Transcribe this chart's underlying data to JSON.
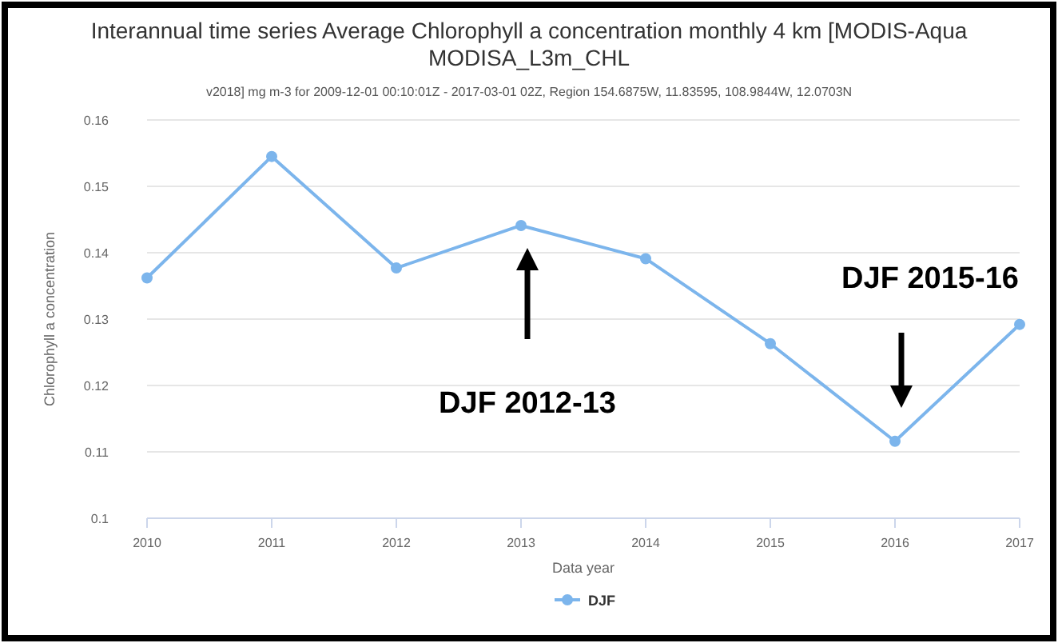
{
  "chart_data": {
    "type": "line",
    "title": "Interannual time series Average Chlorophyll a concentration monthly 4 km [MODIS-Aqua MODISA_L3m_CHL",
    "subtitle": "v2018] mg m-3 for 2009-12-01 00:10:01Z - 2017-03-01 02Z, Region 154.6875W, 11.83595, 108.9844W, 12.0703N",
    "xlabel": "Data year",
    "ylabel": "Chlorophyll a concentration",
    "x": [
      2010,
      2011,
      2012,
      2013,
      2014,
      2015,
      2016,
      2017
    ],
    "series": [
      {
        "name": "DJF",
        "color": "#7cb5ec",
        "values": [
          0.1362,
          0.1545,
          0.1377,
          0.1441,
          0.1391,
          0.1263,
          0.1116,
          0.1292
        ]
      }
    ],
    "xlim": [
      2010,
      2017
    ],
    "xticks": [
      2010,
      2011,
      2012,
      2013,
      2014,
      2015,
      2016,
      2017
    ],
    "ylim": [
      0.1,
      0.16
    ],
    "yticks": [
      0.1,
      0.11,
      0.12,
      0.13,
      0.14,
      0.15,
      0.16
    ],
    "grid": "y",
    "legend": "bottom",
    "marker": "circle",
    "line_style": "solid",
    "annotations": [
      "DJF 2012-13",
      "DJF 2015-16"
    ]
  }
}
